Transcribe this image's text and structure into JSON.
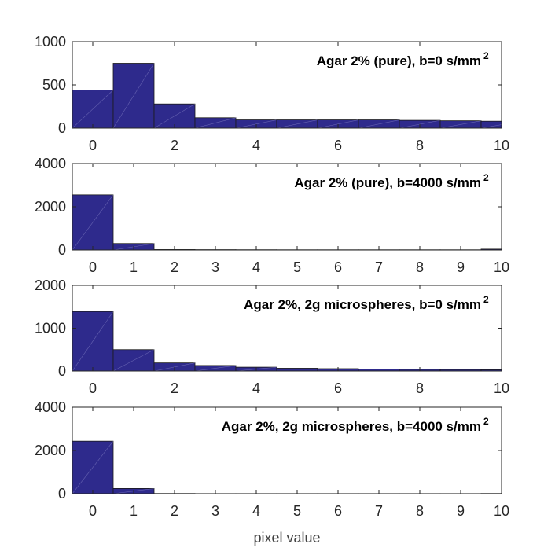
{
  "chart_data": [
    {
      "type": "bar",
      "title": "Agar 2% (pure), b=0 s/mm",
      "title_superscript": "2",
      "categories": [
        0,
        1,
        2,
        3,
        4,
        5,
        6,
        7,
        8,
        9,
        10
      ],
      "values": [
        440,
        750,
        280,
        120,
        95,
        95,
        95,
        95,
        90,
        85,
        80
      ],
      "xlim": [
        -0.5,
        10
      ],
      "ylim": [
        0,
        1000
      ],
      "xticks": [
        "0",
        "2",
        "4",
        "6",
        "8",
        "10"
      ],
      "yticks": [
        "0",
        "500",
        "1000"
      ],
      "color": "#2e2a8c"
    },
    {
      "type": "bar",
      "title": "Agar 2% (pure), b=4000 s/mm",
      "title_superscript": "2",
      "categories": [
        0,
        1,
        2,
        3,
        4,
        5,
        6,
        7,
        8,
        9,
        10
      ],
      "values": [
        2550,
        300,
        20,
        15,
        12,
        10,
        10,
        10,
        10,
        10,
        40
      ],
      "xlim": [
        -0.5,
        10
      ],
      "ylim": [
        0,
        4000
      ],
      "xticks": [
        "0",
        "1",
        "2",
        "3",
        "4",
        "5",
        "6",
        "7",
        "8",
        "9",
        "10"
      ],
      "yticks": [
        "0",
        "2000",
        "4000"
      ],
      "color": "#2e2a8c"
    },
    {
      "type": "bar",
      "title": "Agar 2%, 2g microspheres, b=0 s/mm",
      "title_superscript": "2",
      "categories": [
        0,
        1,
        2,
        3,
        4,
        5,
        6,
        7,
        8,
        9,
        10
      ],
      "values": [
        1390,
        500,
        190,
        130,
        90,
        65,
        55,
        45,
        40,
        35,
        30
      ],
      "xlim": [
        -0.5,
        10
      ],
      "ylim": [
        0,
        2000
      ],
      "xticks": [
        "0",
        "2",
        "4",
        "6",
        "8",
        "10"
      ],
      "yticks": [
        "0",
        "1000",
        "2000"
      ],
      "color": "#2e2a8c"
    },
    {
      "type": "bar",
      "title": "Agar 2%, 2g microspheres, b=4000 s/mm",
      "title_superscript": "2",
      "categories": [
        0,
        1,
        2,
        3,
        4,
        5,
        6,
        7,
        8,
        9,
        10
      ],
      "values": [
        2430,
        240,
        10,
        5,
        5,
        5,
        5,
        5,
        5,
        5,
        10
      ],
      "xlim": [
        -0.5,
        10
      ],
      "ylim": [
        0,
        4000
      ],
      "xticks": [
        "0",
        "1",
        "2",
        "3",
        "4",
        "5",
        "6",
        "7",
        "8",
        "9",
        "10"
      ],
      "yticks": [
        "0",
        "2000",
        "4000"
      ],
      "color": "#2e2a8c",
      "xlabel": "pixel value"
    }
  ]
}
